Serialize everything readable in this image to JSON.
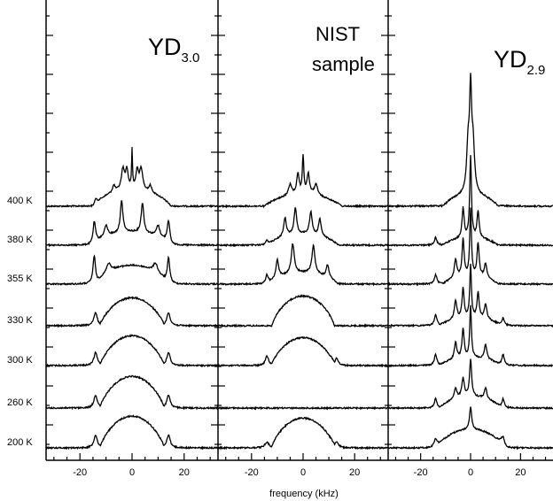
{
  "chart_data": {
    "type": "line",
    "xlabel": "frequency (kHz)",
    "xlim": [
      -33,
      33
    ],
    "x_ticks": [
      -20,
      0,
      20
    ],
    "x_tick_labels": [
      "-20",
      "0",
      "20"
    ],
    "temperatures": [
      "400 K",
      "380 K",
      "355 K",
      "330 K",
      "300 K",
      "260 K",
      "200 K"
    ],
    "panels": [
      {
        "label_main": "YD",
        "label_sub": "3.0",
        "series": [
          {
            "temperature": "400 K",
            "lines": [
              [
                -14,
                0.12,
                0.5
              ],
              [
                -3.5,
                0.55,
                0.7
              ],
              [
                3.5,
                0.55,
                0.7
              ],
              [
                -7,
                0.18,
                0.6
              ],
              [
                7,
                0.18,
                0.6
              ],
              [
                -2,
                0.5,
                0.6
              ],
              [
                2,
                0.5,
                0.6
              ],
              [
                0,
                1.0,
                0.2
              ]
            ],
            "broad": [
              0.45,
              11
            ]
          },
          {
            "temperature": "380 K",
            "lines": [
              [
                -14.5,
                0.6,
                0.6
              ],
              [
                14,
                0.6,
                0.6
              ],
              [
                -4,
                0.85,
                0.6
              ],
              [
                4,
                0.8,
                0.6
              ],
              [
                -10,
                0.3,
                0.8
              ],
              [
                10,
                0.3,
                0.8
              ]
            ],
            "broad": [
              0.35,
              11
            ]
          },
          {
            "temperature": "355 K",
            "lines": [
              [
                -14.5,
                0.75,
                0.6
              ],
              [
                14,
                0.7,
                0.6
              ],
              [
                -9,
                0.25,
                1.0
              ],
              [
                9,
                0.25,
                1.0
              ]
            ],
            "broad": [
              0.5,
              10
            ]
          },
          {
            "temperature": "330 K",
            "lines": [
              [
                -14,
                0.35,
                0.8
              ],
              [
                14,
                0.35,
                0.8
              ]
            ],
            "broad": [
              0.75,
              9
            ]
          },
          {
            "temperature": "300 K",
            "lines": [
              [
                -14,
                0.35,
                0.8
              ],
              [
                14,
                0.35,
                0.8
              ]
            ],
            "broad": [
              0.8,
              9
            ]
          },
          {
            "temperature": "260 K",
            "lines": [
              [
                -14,
                0.35,
                0.8
              ],
              [
                14,
                0.35,
                0.8
              ]
            ],
            "broad": [
              0.85,
              9
            ]
          },
          {
            "temperature": "200 K",
            "lines": [
              [
                -14,
                0.35,
                0.8
              ],
              [
                14,
                0.35,
                0.8
              ]
            ],
            "broad": [
              0.85,
              9
            ]
          }
        ]
      },
      {
        "label_line1": "NIST",
        "label_line2": "sample",
        "series": [
          {
            "temperature": "400 K",
            "lines": [
              [
                0,
                1.0,
                0.35
              ],
              [
                -2,
                0.55,
                0.6
              ],
              [
                2,
                0.55,
                0.6
              ],
              [
                -5,
                0.3,
                0.8
              ],
              [
                5,
                0.3,
                0.8
              ]
            ],
            "broad": [
              0.3,
              11
            ]
          },
          {
            "temperature": "380 K",
            "lines": [
              [
                -7,
                0.5,
                0.6
              ],
              [
                -3,
                0.7,
                0.6
              ],
              [
                3,
                0.6,
                0.6
              ],
              [
                6.5,
                0.45,
                0.6
              ],
              [
                -14,
                0.15,
                0.6
              ]
            ],
            "broad": [
              0.3,
              10
            ]
          },
          {
            "temperature": "355 K",
            "lines": [
              [
                -10,
                0.5,
                0.6
              ],
              [
                -4,
                0.8,
                0.7
              ],
              [
                4,
                0.75,
                0.7
              ],
              [
                9.5,
                0.35,
                0.6
              ],
              [
                -14,
                0.25,
                0.6
              ]
            ],
            "broad": [
              0.3,
              10
            ]
          },
          {
            "temperature": "330 K",
            "lines": [],
            "broad": [
              0.8,
              9
            ]
          },
          {
            "temperature": "300 K",
            "lines": [
              [
                -14,
                0.25,
                0.8
              ],
              [
                13,
                0.2,
                0.8
              ]
            ],
            "broad": [
              0.75,
              9
            ]
          },
          {
            "temperature": "260 K",
            "lines": [],
            "broad": [
              0.0,
              9
            ]
          },
          {
            "temperature": "200 K",
            "lines": [
              [
                -14,
                0.15,
                1.0
              ],
              [
                13,
                0.15,
                1.0
              ]
            ],
            "broad": [
              0.8,
              9
            ]
          }
        ]
      },
      {
        "label_main": "YD",
        "label_sub": "2.9",
        "series": [
          {
            "temperature": "400 K",
            "lines": [
              [
                0,
                2.5,
                0.5
              ],
              [
                -1,
                1.2,
                0.7
              ],
              [
                1,
                1.2,
                0.7
              ]
            ],
            "broad": [
              0.3,
              8
            ]
          },
          {
            "temperature": "380 K",
            "lines": [
              [
                0,
                2.2,
                0.4
              ],
              [
                -3,
                0.8,
                0.5
              ],
              [
                3,
                0.7,
                0.5
              ],
              [
                -14,
                0.2,
                0.6
              ]
            ],
            "broad": [
              0.2,
              8
            ]
          },
          {
            "temperature": "355 K",
            "lines": [
              [
                0,
                1.8,
                0.4
              ],
              [
                -3,
                1.0,
                0.5
              ],
              [
                3,
                0.9,
                0.5
              ],
              [
                -6,
                0.5,
                0.6
              ],
              [
                6,
                0.4,
                0.6
              ],
              [
                -14,
                0.25,
                0.6
              ]
            ],
            "broad": [
              0.2,
              8
            ]
          },
          {
            "temperature": "330 K",
            "lines": [
              [
                0,
                1.4,
                0.4
              ],
              [
                -3,
                0.8,
                0.5
              ],
              [
                3,
                0.7,
                0.5
              ],
              [
                -6,
                0.5,
                0.6
              ],
              [
                6,
                0.4,
                0.6
              ],
              [
                -14,
                0.3,
                0.6
              ],
              [
                13,
                0.2,
                0.6
              ]
            ],
            "broad": [
              0.2,
              9
            ]
          },
          {
            "temperature": "300 K",
            "lines": [
              [
                0,
                1.4,
                0.4
              ],
              [
                -3,
                0.8,
                0.5
              ],
              [
                -6,
                0.45,
                0.6
              ],
              [
                6,
                0.4,
                0.6
              ],
              [
                -14,
                0.3,
                0.6
              ],
              [
                13,
                0.3,
                0.6
              ]
            ],
            "broad": [
              0.2,
              9
            ]
          },
          {
            "temperature": "260 K",
            "lines": [
              [
                0,
                1.0,
                0.5
              ],
              [
                -3,
                0.5,
                0.6
              ],
              [
                -6,
                0.3,
                0.6
              ],
              [
                6,
                0.3,
                0.6
              ],
              [
                -14,
                0.25,
                0.6
              ],
              [
                13,
                0.25,
                0.6
              ]
            ],
            "broad": [
              0.3,
              9
            ]
          },
          {
            "temperature": "200 K",
            "lines": [
              [
                0,
                0.6,
                0.5
              ],
              [
                -14,
                0.25,
                0.8
              ],
              [
                13,
                0.25,
                0.8
              ]
            ],
            "broad": [
              0.5,
              10
            ]
          }
        ]
      }
    ]
  }
}
